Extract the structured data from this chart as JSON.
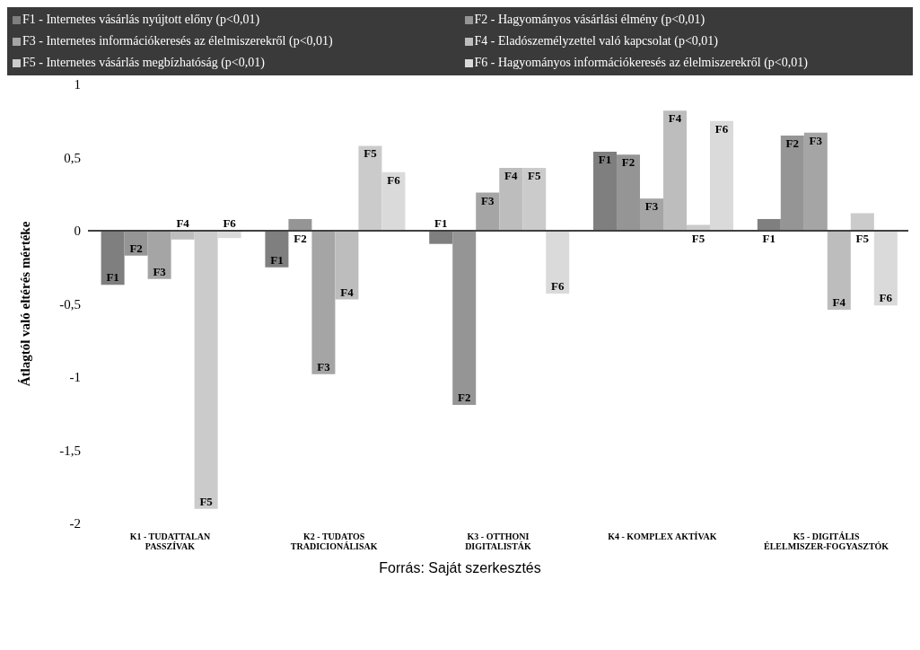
{
  "chart_data": {
    "type": "bar",
    "ylabel": "Átlagtól való eltérés mértéke",
    "annotations": [
      "Forrás: Saját szerkesztés"
    ],
    "categories": [
      "K1 - TUDATTALAN PASSZÍVAK",
      "K2 - TUDATOS TRADICIONÁLISAK",
      "K3 - OTTHONI DIGITALISTÁK",
      "K4 - KOMPLEX AKTÍVAK",
      "K5 - DIGITÁLIS ÉLELMISZER-FOGYASZTÓK"
    ],
    "series": [
      {
        "name": "F1 - Internetes vásárlás nyújtott előny (p<0,01)",
        "color": "#7f7f7f",
        "values": [
          -0.37,
          -0.25,
          -0.09,
          0.54,
          0.08
        ],
        "value_labels": [
          "F1",
          "F1",
          "F1",
          "F1",
          "F1"
        ]
      },
      {
        "name": "F2 - Hagyományos vásárlási élmény (p<0,01)",
        "color": "#959595",
        "values": [
          -0.17,
          0.08,
          -1.19,
          0.52,
          0.65
        ],
        "value_labels": [
          "F2",
          "F2",
          "F2",
          "F2",
          "F2"
        ]
      },
      {
        "name": "F3 - Internetes információkeresés az élelmiszerekről (p<0,01)",
        "color": "#a5a5a5",
        "values": [
          -0.33,
          -0.98,
          0.26,
          0.22,
          0.67
        ],
        "value_labels": [
          "F3",
          "F3",
          "F3",
          "F3",
          "F3"
        ]
      },
      {
        "name": "F4 - Eladószemélyzettel való kapcsolat (p<0,01)",
        "color": "#bdbdbd",
        "values": [
          -0.06,
          -0.47,
          0.43,
          0.82,
          -0.54
        ],
        "value_labels": [
          "F4",
          "F4",
          "F4",
          "F4",
          "F4"
        ]
      },
      {
        "name": "F5 - Internetes vásárlás megbízhatóság (p<0,01)",
        "color": "#cbcbcb",
        "values": [
          -1.9,
          0.58,
          0.43,
          0.04,
          0.12
        ],
        "value_labels": [
          "F5",
          "F5",
          "F5",
          "F5",
          "F5"
        ]
      },
      {
        "name": "F6 - Hagyományos információkeresés az élelmiszerekről (p<0,01)",
        "color": "#dadada",
        "values": [
          -0.05,
          0.4,
          -0.43,
          0.75,
          -0.51
        ],
        "value_labels": [
          "F6",
          "F6",
          "F6",
          "F6",
          "F6"
        ]
      }
    ],
    "ylim": [
      -2,
      1
    ],
    "yticks": [
      {
        "value": -2,
        "label": "-2"
      },
      {
        "value": -1.5,
        "label": "-1,5"
      },
      {
        "value": -1,
        "label": "-1"
      },
      {
        "value": -0.5,
        "label": "-0,5"
      },
      {
        "value": 0,
        "label": "0"
      },
      {
        "value": 0.5,
        "label": "0,5"
      },
      {
        "value": 1,
        "label": "1"
      }
    ],
    "ref_lines": [
      {
        "axis": "y",
        "value": 0,
        "color": "#404040"
      }
    ],
    "legend": "top"
  }
}
